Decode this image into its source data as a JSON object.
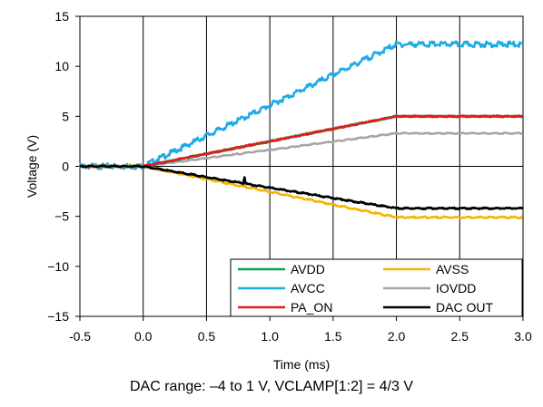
{
  "chart_data": {
    "type": "line",
    "xlabel": "Time (ms)",
    "ylabel": "Voltage (V)",
    "xlim": [
      -0.5,
      3.0
    ],
    "ylim": [
      -15,
      15
    ],
    "x_ticks": [
      "-0.5",
      "0.0",
      "0.5",
      "1.0",
      "1.5",
      "2.0",
      "2.5",
      "3.0"
    ],
    "x_tick_values": [
      -0.5,
      0.0,
      0.5,
      1.0,
      1.5,
      2.0,
      2.5,
      3.0
    ],
    "y_ticks": [
      "15",
      "10",
      "5",
      "0",
      "−5",
      "−10",
      "−15"
    ],
    "y_tick_values": [
      15,
      10,
      5,
      0,
      -5,
      -10,
      -15
    ],
    "grid": "vertical",
    "legend_placement": "bottom-right",
    "series": [
      {
        "name": "AVDD",
        "color": "#00a651",
        "x": [
          -0.5,
          0.0,
          2.0,
          3.0
        ],
        "y": [
          0,
          0,
          5.0,
          5.0
        ]
      },
      {
        "name": "AVSS",
        "color": "#f5b400",
        "x": [
          -0.5,
          0.0,
          2.0,
          3.0
        ],
        "y": [
          0,
          0,
          -5.1,
          -5.1
        ]
      },
      {
        "name": "AVCC",
        "color": "#1eaae6",
        "x": [
          -0.5,
          0.0,
          2.0,
          3.0
        ],
        "y": [
          0,
          0,
          12.2,
          12.2
        ]
      },
      {
        "name": "IOVDD",
        "color": "#a6a6a6",
        "x": [
          -0.5,
          0.0,
          2.0,
          3.0
        ],
        "y": [
          0,
          0,
          3.3,
          3.3
        ]
      },
      {
        "name": "PA_ON",
        "color": "#e31b1b",
        "x": [
          -0.5,
          0.0,
          2.0,
          3.0
        ],
        "y": [
          0,
          0,
          5.0,
          5.0
        ]
      },
      {
        "name": "DAC OUT",
        "color": "#000000",
        "x": [
          -0.5,
          0.0,
          0.79,
          0.8,
          0.81,
          2.0,
          3.0
        ],
        "y": [
          0,
          0,
          -1.7,
          -1.0,
          -1.75,
          -4.2,
          -4.2
        ]
      }
    ]
  },
  "caption": "DAC range: –4 to 1 V, VCLAMP[1:2] = 4/3 V"
}
